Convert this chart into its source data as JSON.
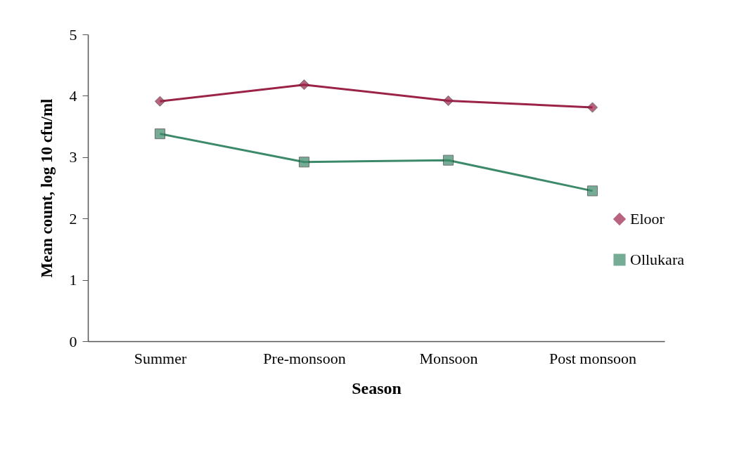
{
  "chart_data": {
    "type": "line",
    "xlabel": "Season",
    "ylabel": "Mean count, log 10 cfu/ml",
    "categories": [
      "Summer",
      "Pre-monsoon",
      "Monsoon",
      "Post monsoon"
    ],
    "series": [
      {
        "name": "Eloor",
        "color": "#9b2348",
        "values": [
          3.91,
          4.18,
          3.92,
          3.81
        ],
        "marker": "diamond"
      },
      {
        "name": "Ollukara",
        "color": "#3d8a6a",
        "values": [
          3.38,
          2.92,
          2.95,
          2.45
        ],
        "marker": "square"
      }
    ],
    "ylim": [
      0,
      5
    ],
    "yticks": [
      0,
      1,
      2,
      3,
      4,
      5
    ],
    "grid": false,
    "legend": "right",
    "line_style": "solid"
  }
}
